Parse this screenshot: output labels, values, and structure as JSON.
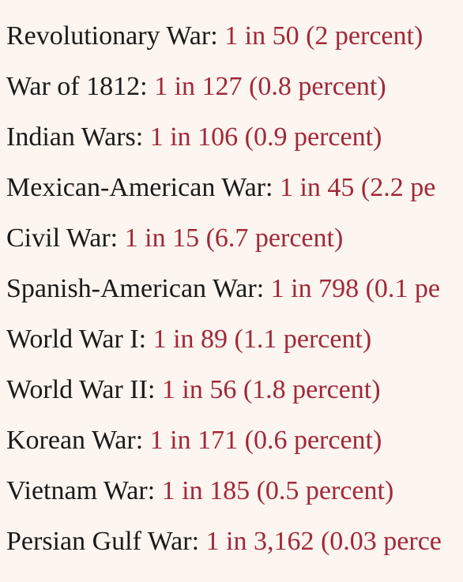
{
  "colors": {
    "background": "#fdf5ef",
    "label_text": "#1a1a1a",
    "stat_text": "#a0283a"
  },
  "rows": [
    {
      "label": "Revolutionary War:",
      "stat": "1 in 50 (2 percent)"
    },
    {
      "label": "War of 1812:",
      "stat": "1 in 127 (0.8 percent)"
    },
    {
      "label": "Indian Wars:",
      "stat": "1 in 106 (0.9 percent)"
    },
    {
      "label": "Mexican-American War:",
      "stat": "1 in 45 (2.2 pe"
    },
    {
      "label": "Civil War:",
      "stat": "1 in 15 (6.7 percent)"
    },
    {
      "label": "Spanish-American War:",
      "stat": "1 in 798 (0.1 pe"
    },
    {
      "label": "World War I:",
      "stat": "1 in 89 (1.1 percent)"
    },
    {
      "label": "World War II:",
      "stat": "1 in 56 (1.8 percent)"
    },
    {
      "label": "Korean War:",
      "stat": "1 in 171 (0.6 percent)"
    },
    {
      "label": "Vietnam War:",
      "stat": "1 in 185 (0.5 percent)"
    },
    {
      "label": "Persian Gulf War:",
      "stat": "1 in 3,162 (0.03 perce"
    }
  ]
}
